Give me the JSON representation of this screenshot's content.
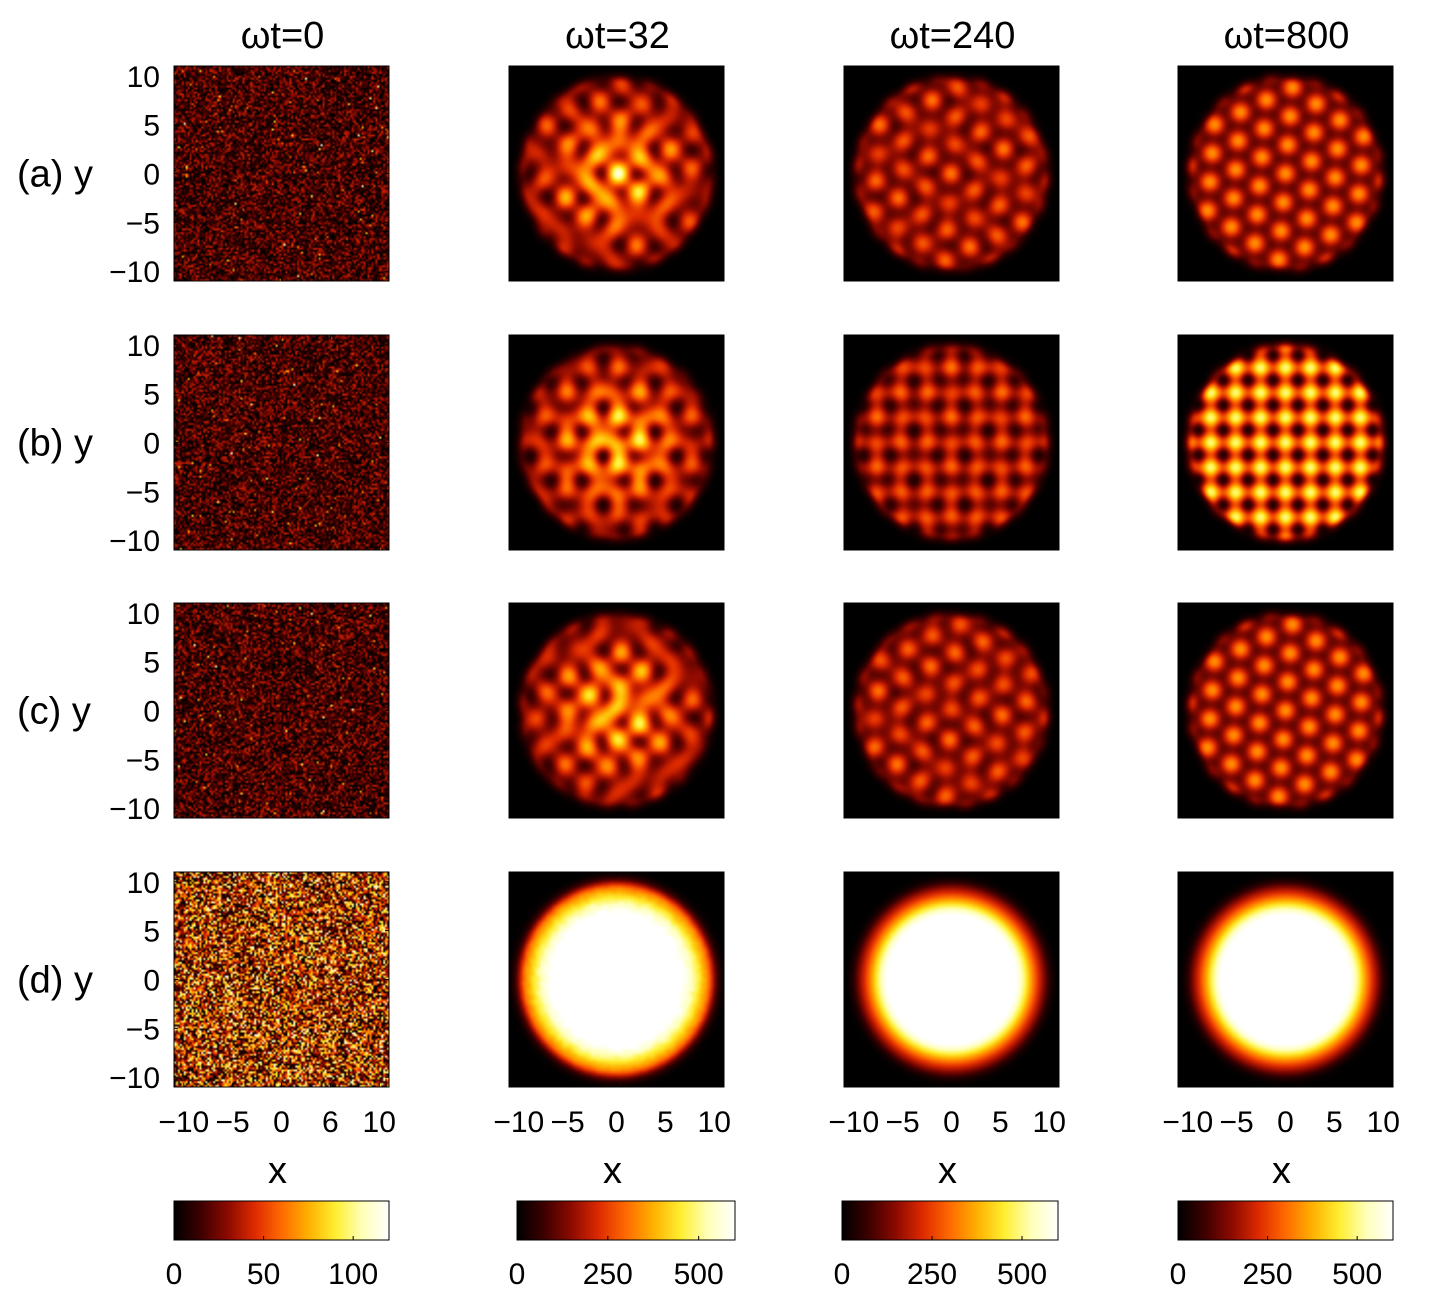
{
  "figure": {
    "column_titles": [
      "ωt=0",
      "ωt=32",
      "ωt=240",
      "ωt=800"
    ],
    "row_labels": [
      "(a) y",
      "(b) y",
      "(c) y",
      "(d) y"
    ],
    "xlabel": "x",
    "ytick_labels": [
      "10",
      "5",
      "0",
      "−5",
      "−10"
    ],
    "xtick_labels_col1": [
      "−10",
      "−5",
      "0",
      "6",
      "10"
    ],
    "xtick_labels_other": [
      "−10",
      "−5",
      "0",
      "5",
      "10"
    ],
    "colorbar_ticks": [
      [
        "0",
        "50",
        "100"
      ],
      [
        "0",
        "250",
        "500"
      ],
      [
        "0",
        "250",
        "500"
      ],
      [
        "0",
        "250",
        "500"
      ]
    ],
    "colormap": [
      "#000000",
      "#3d0000",
      "#8c0a00",
      "#dd2a00",
      "#ff6a00",
      "#ffb000",
      "#ffee30",
      "#ffffb8",
      "#ffffff"
    ]
  },
  "chart_data": {
    "type": "heatmap",
    "description_grid": "4 rows x 4 columns of density maps",
    "x_range": [
      -11,
      11
    ],
    "y_range": [
      -11,
      11
    ],
    "columns": [
      {
        "title": "ωt=0",
        "colorbar_range": [
          0,
          120
        ],
        "colorbar_ticks": [
          0,
          50,
          100
        ]
      },
      {
        "title": "ωt=32",
        "colorbar_range": [
          0,
          600
        ],
        "colorbar_ticks": [
          0,
          250,
          500
        ]
      },
      {
        "title": "ωt=240",
        "colorbar_range": [
          0,
          600
        ],
        "colorbar_ticks": [
          0,
          250,
          500
        ]
      },
      {
        "title": "ωt=800",
        "colorbar_range": [
          0,
          600
        ],
        "colorbar_ticks": [
          0,
          250,
          500
        ]
      }
    ],
    "rows": [
      "(a)",
      "(b)",
      "(c)",
      "(d)"
    ]
  }
}
